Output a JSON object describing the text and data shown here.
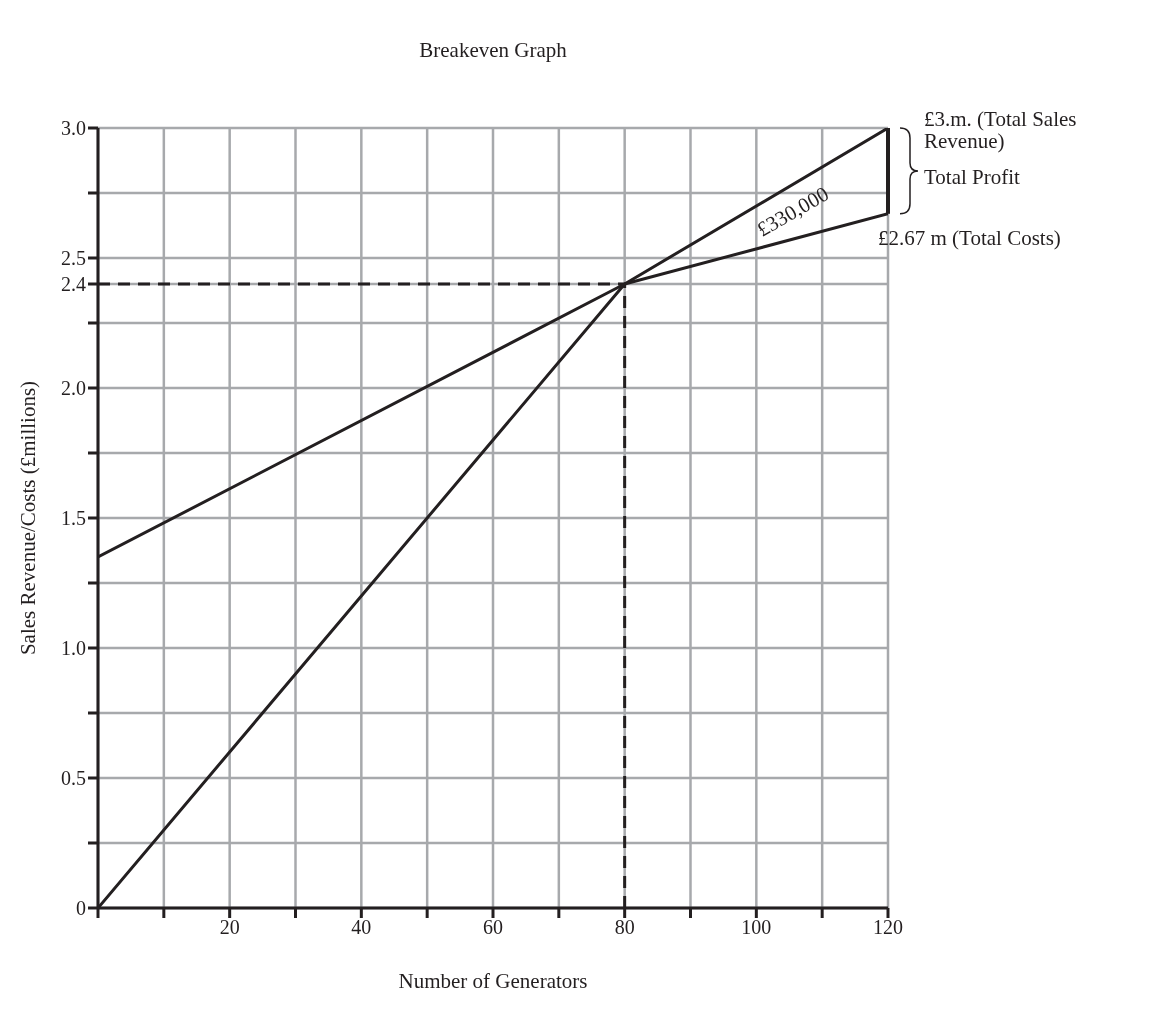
{
  "chart_data": {
    "type": "line",
    "title": "Breakeven Graph",
    "xlabel": "Number of Generators",
    "ylabel": "Sales Revenue/Costs (£millions)",
    "xlim": [
      0,
      120
    ],
    "xticks": [
      {
        "value": 0,
        "label": null
      },
      {
        "value": 10,
        "label": null
      },
      20,
      {
        "value": 30,
        "label": null
      },
      40,
      {
        "value": 50,
        "label": null
      },
      60,
      {
        "value": 70,
        "label": null
      },
      80,
      {
        "value": 90,
        "label": null
      },
      100,
      {
        "value": 110,
        "label": null
      },
      120
    ],
    "ylim": [
      0,
      3
    ],
    "yticks": [
      0,
      {
        "value": 0.25,
        "label": null
      },
      0.5,
      {
        "value": 0.75,
        "label": null
      },
      {
        "value": 1,
        "label": "1.0"
      },
      {
        "value": 1.25,
        "label": null
      },
      1.5,
      {
        "value": 1.75,
        "label": null
      },
      {
        "value": 2,
        "label": "2.0"
      },
      {
        "value": 2.25,
        "label": null
      },
      2.4,
      2.5,
      {
        "value": 2.75,
        "label": null
      },
      {
        "value": 3,
        "label": "3.0"
      }
    ],
    "grid": true,
    "marker": "none",
    "series": [
      {
        "color": "#231f20",
        "x": [
          0,
          80,
          120
        ],
        "values": [
          0,
          2.4,
          3.0
        ],
        "line_style": "solid"
      },
      {
        "color": "#231f20",
        "x": [
          0,
          80,
          120
        ],
        "values": [
          1.35,
          2.4,
          2.67
        ],
        "line_style": "solid"
      }
    ],
    "ref_lines": [
      {
        "axis": "y",
        "value": 2.4,
        "line_style": "dashed",
        "color": "#231f20"
      },
      {
        "axis": "x",
        "value": 80,
        "line_style": "dashed",
        "color": "#231f20"
      }
    ],
    "annotations": [
      {
        "text": "£3.m. (Total Sales Revenue)",
        "x": 120,
        "y": 3.0
      },
      {
        "text": "£2.67 m (Total Costs)",
        "x": 120,
        "y": 2.67
      },
      "£330,000",
      "Total Profit"
    ]
  }
}
